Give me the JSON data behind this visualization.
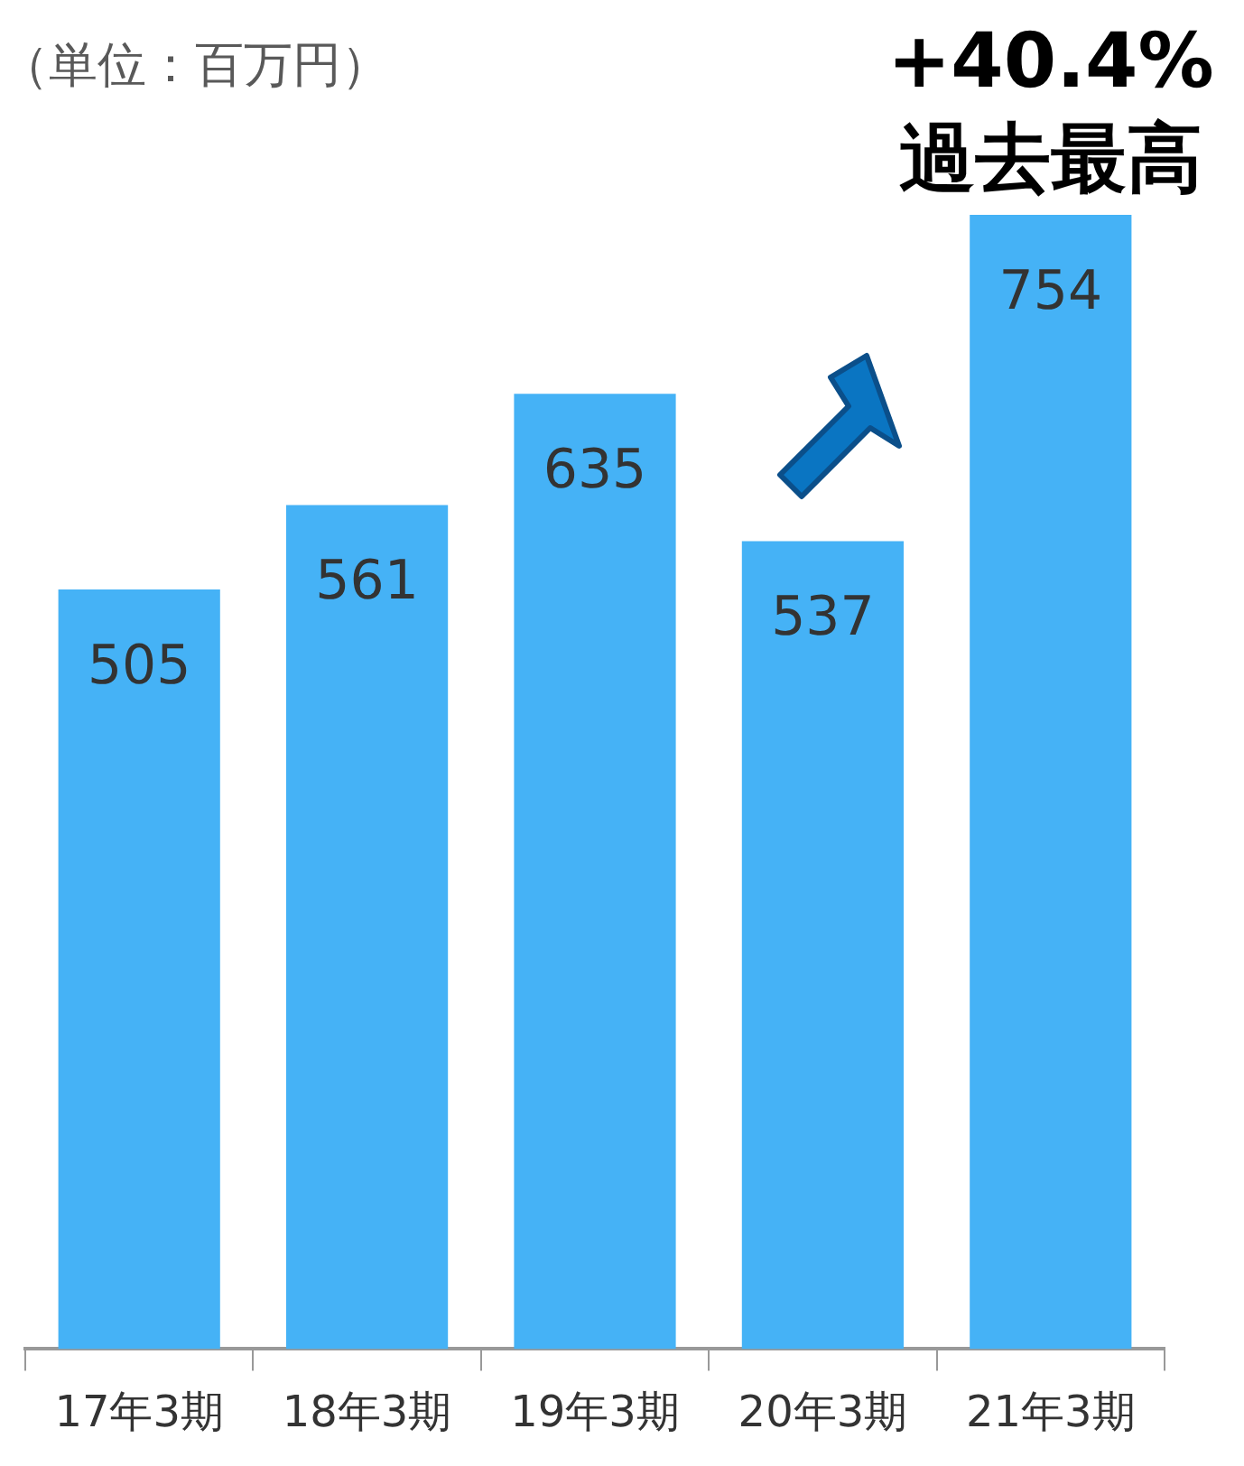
{
  "chart_data": {
    "type": "bar",
    "title": "（単位：百万円）",
    "categories": [
      "17年3期",
      "18年3期",
      "19年3期",
      "20年3期",
      "21年3期"
    ],
    "values": [
      505,
      561,
      635,
      537,
      754
    ],
    "color": "#45b2f6",
    "ylim": [
      0,
      754
    ],
    "data_labels": true,
    "grid": false,
    "legend": false,
    "tick_labels": "x",
    "annotations": [
      {
        "text": "+40.4%",
        "x": "21年3期",
        "y": 754
      },
      {
        "text": "過去最高",
        "x": "21年3期",
        "y": 754
      }
    ]
  }
}
